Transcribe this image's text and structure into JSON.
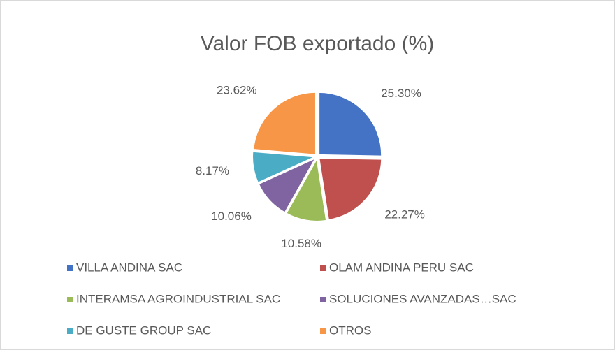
{
  "chart_data": {
    "type": "pie",
    "title": "Valor FOB exportado (%)",
    "categories": [
      "VILLA ANDINA SAC",
      "OLAM ANDINA PERU SAC",
      "INTERAMSA AGROINDUSTRIAL SAC",
      "SOLUCIONES AVANZADAS…SAC",
      "DE GUSTE GROUP SAC",
      "OTROS"
    ],
    "values": [
      25.3,
      22.27,
      10.58,
      10.06,
      8.17,
      23.62
    ],
    "value_labels": [
      "25.30%",
      "22.27%",
      "10.58%",
      "10.06%",
      "8.17%",
      "23.62%"
    ],
    "colors": [
      "#4472c4",
      "#c0504d",
      "#9bbb59",
      "#8064a2",
      "#4bacc6",
      "#f79646"
    ],
    "legend": "bottom"
  }
}
